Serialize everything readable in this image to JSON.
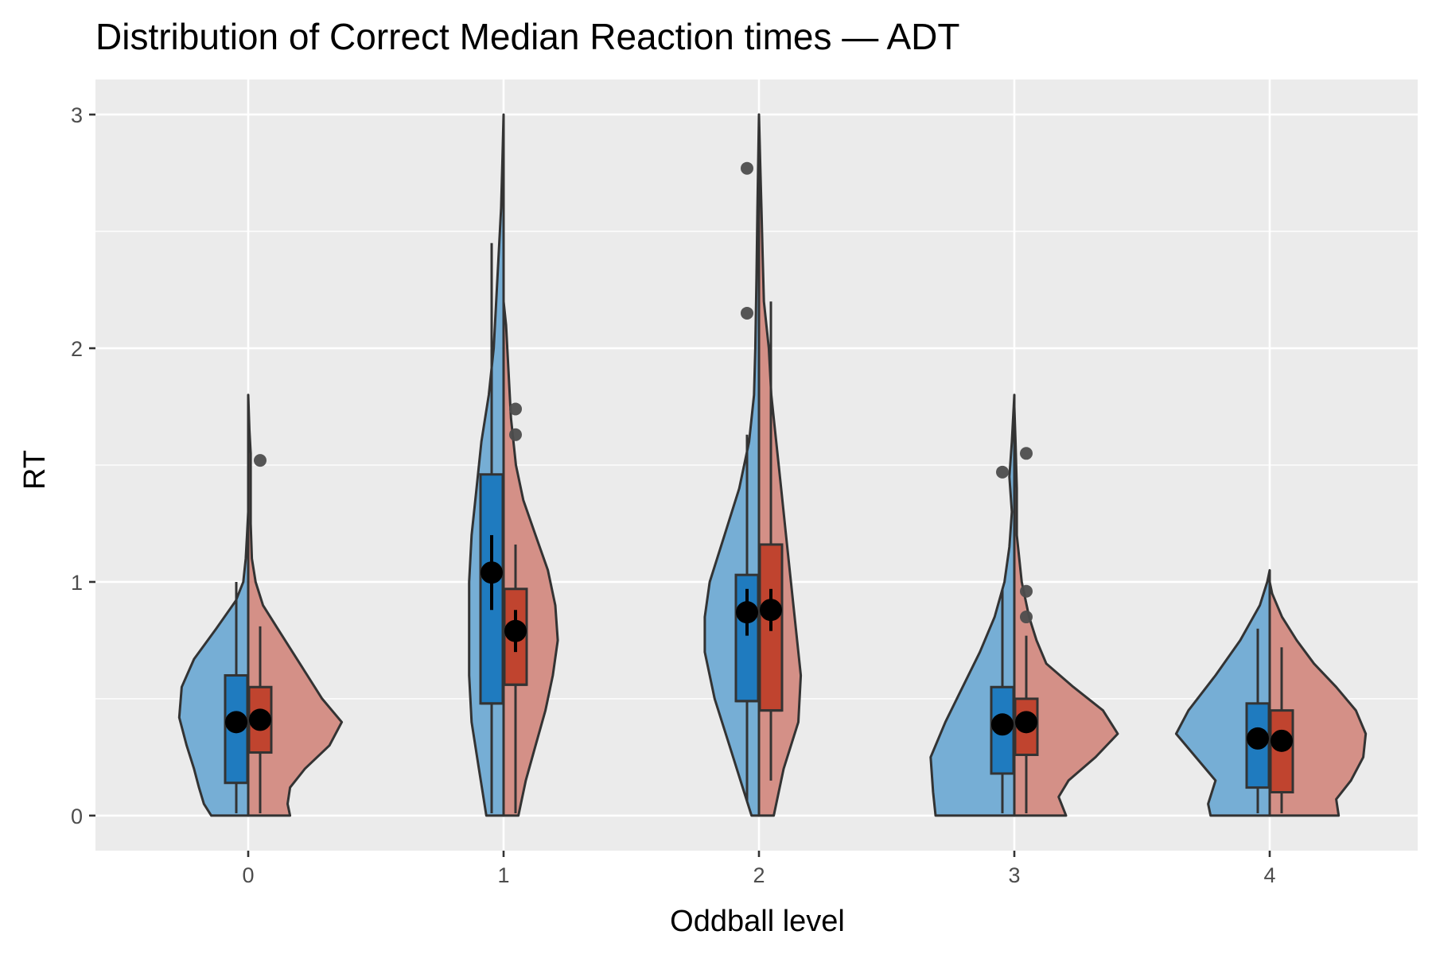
{
  "chart_data": {
    "type": "violin",
    "title": "Distribution of Correct Median Reaction times — ADT",
    "xlabel": "Oddball level",
    "ylabel": "RT",
    "categories": [
      "0",
      "1",
      "2",
      "3",
      "4"
    ],
    "yticks": [
      0,
      1,
      2,
      3
    ],
    "ylim": [
      -0.15,
      3.15
    ],
    "grid": true,
    "legend": "none",
    "colors": {
      "panel": "#ebebeb",
      "grid": "#ffffff",
      "left_violin": "#76aed5",
      "right_violin": "#d49087",
      "left_box": "#1f7bbf",
      "right_box": "#c0442f",
      "outline": "#333333",
      "mean": "#000000",
      "outlier": "#4d4d4d"
    },
    "series": [
      {
        "side": "left",
        "groups": [
          {
            "category": "0",
            "box": {
              "lower_whisker": 0.01,
              "q1": 0.14,
              "median": 0.4,
              "q3": 0.6,
              "upper_whisker": 1.0
            },
            "mean": 0.4,
            "mean_ci": [
              0.37,
              0.43
            ],
            "outliers": [],
            "density": [
              [
                0,
                0.15
              ],
              [
                0.05,
                0.18
              ],
              [
                0.12,
                0.2
              ],
              [
                0.2,
                0.22
              ],
              [
                0.3,
                0.25
              ],
              [
                0.42,
                0.28
              ],
              [
                0.55,
                0.27
              ],
              [
                0.67,
                0.22
              ],
              [
                0.8,
                0.13
              ],
              [
                0.92,
                0.05
              ],
              [
                1.0,
                0.02
              ],
              [
                1.1,
                0.01
              ],
              [
                1.2,
                0.005
              ],
              [
                1.3,
                0.0
              ]
            ]
          },
          {
            "category": "1",
            "box": {
              "lower_whisker": 0.01,
              "q1": 0.48,
              "median": 0.48,
              "q3": 1.46,
              "upper_whisker": 2.45
            },
            "mean": 1.04,
            "mean_ci": [
              0.88,
              1.2
            ],
            "outliers": [],
            "density": [
              [
                0,
                0.07
              ],
              [
                0.2,
                0.1
              ],
              [
                0.4,
                0.13
              ],
              [
                0.6,
                0.14
              ],
              [
                0.8,
                0.14
              ],
              [
                1.0,
                0.14
              ],
              [
                1.2,
                0.13
              ],
              [
                1.4,
                0.11
              ],
              [
                1.6,
                0.09
              ],
              [
                1.8,
                0.06
              ],
              [
                2.0,
                0.04
              ],
              [
                2.2,
                0.03
              ],
              [
                2.4,
                0.02
              ],
              [
                2.6,
                0.01
              ],
              [
                2.8,
                0.005
              ],
              [
                3.0,
                0.0
              ]
            ]
          },
          {
            "category": "2",
            "box": {
              "lower_whisker": 0.06,
              "q1": 0.49,
              "median": 0.49,
              "q3": 1.03,
              "upper_whisker": 1.63
            },
            "mean": 0.87,
            "mean_ci": [
              0.77,
              0.97
            ],
            "outliers": [
              2.15,
              2.77
            ],
            "density": [
              [
                0,
                0.03
              ],
              [
                0.1,
                0.06
              ],
              [
                0.3,
                0.12
              ],
              [
                0.5,
                0.18
              ],
              [
                0.7,
                0.22
              ],
              [
                0.85,
                0.22
              ],
              [
                1.0,
                0.2
              ],
              [
                1.2,
                0.14
              ],
              [
                1.4,
                0.08
              ],
              [
                1.6,
                0.04
              ],
              [
                1.8,
                0.02
              ],
              [
                2.0,
                0.015
              ],
              [
                2.3,
                0.01
              ],
              [
                2.6,
                0.006
              ],
              [
                3.0,
                0.0
              ]
            ]
          },
          {
            "category": "3",
            "box": {
              "lower_whisker": 0.01,
              "q1": 0.18,
              "median": 0.39,
              "q3": 0.55,
              "upper_whisker": 0.97
            },
            "mean": 0.39,
            "mean_ci": [
              0.36,
              0.42
            ],
            "outliers": [
              1.47
            ],
            "density": [
              [
                0,
                0.32
              ],
              [
                0.1,
                0.33
              ],
              [
                0.25,
                0.34
              ],
              [
                0.4,
                0.28
              ],
              [
                0.55,
                0.21
              ],
              [
                0.7,
                0.14
              ],
              [
                0.85,
                0.08
              ],
              [
                1.0,
                0.04
              ],
              [
                1.15,
                0.02
              ],
              [
                1.3,
                0.01
              ],
              [
                1.45,
                0.02
              ],
              [
                1.6,
                0.01
              ],
              [
                1.8,
                0.0
              ]
            ]
          },
          {
            "category": "4",
            "box": {
              "lower_whisker": 0.01,
              "q1": 0.12,
              "median": 0.33,
              "q3": 0.48,
              "upper_whisker": 0.8
            },
            "mean": 0.33,
            "mean_ci": [
              0.3,
              0.36
            ],
            "outliers": [],
            "density": [
              [
                0,
                0.24
              ],
              [
                0.05,
                0.25
              ],
              [
                0.15,
                0.22
              ],
              [
                0.25,
                0.3
              ],
              [
                0.35,
                0.38
              ],
              [
                0.45,
                0.33
              ],
              [
                0.6,
                0.22
              ],
              [
                0.75,
                0.12
              ],
              [
                0.9,
                0.04
              ],
              [
                1.0,
                0.01
              ],
              [
                1.05,
                0.0
              ]
            ]
          }
        ]
      },
      {
        "side": "right",
        "groups": [
          {
            "category": "0",
            "box": {
              "lower_whisker": 0.01,
              "q1": 0.27,
              "median": 0.41,
              "q3": 0.55,
              "upper_whisker": 0.81
            },
            "mean": 0.41,
            "mean_ci": [
              0.38,
              0.44
            ],
            "outliers": [
              1.52
            ],
            "density": [
              [
                0,
                0.17
              ],
              [
                0.05,
                0.16
              ],
              [
                0.12,
                0.17
              ],
              [
                0.2,
                0.23
              ],
              [
                0.3,
                0.33
              ],
              [
                0.4,
                0.38
              ],
              [
                0.5,
                0.3
              ],
              [
                0.6,
                0.24
              ],
              [
                0.7,
                0.18
              ],
              [
                0.8,
                0.12
              ],
              [
                0.9,
                0.06
              ],
              [
                1.0,
                0.03
              ],
              [
                1.1,
                0.015
              ],
              [
                1.25,
                0.01
              ],
              [
                1.4,
                0.01
              ],
              [
                1.55,
                0.01
              ],
              [
                1.65,
                0.005
              ],
              [
                1.8,
                0.0
              ]
            ]
          },
          {
            "category": "1",
            "box": {
              "lower_whisker": 0.01,
              "q1": 0.56,
              "median": 0.56,
              "q3": 0.97,
              "upper_whisker": 1.16
            },
            "mean": 0.79,
            "mean_ci": [
              0.7,
              0.88
            ],
            "outliers": [
              1.63,
              1.74
            ],
            "density": [
              [
                0,
                0.06
              ],
              [
                0.15,
                0.09
              ],
              [
                0.3,
                0.13
              ],
              [
                0.45,
                0.17
              ],
              [
                0.6,
                0.2
              ],
              [
                0.75,
                0.22
              ],
              [
                0.9,
                0.21
              ],
              [
                1.05,
                0.18
              ],
              [
                1.2,
                0.13
              ],
              [
                1.35,
                0.08
              ],
              [
                1.5,
                0.05
              ],
              [
                1.7,
                0.03
              ],
              [
                1.9,
                0.02
              ],
              [
                2.1,
                0.01
              ],
              [
                2.2,
                0.0
              ]
            ]
          },
          {
            "category": "2",
            "box": {
              "lower_whisker": 0.15,
              "q1": 0.45,
              "median": 0.45,
              "q3": 1.16,
              "upper_whisker": 2.2
            },
            "mean": 0.88,
            "mean_ci": [
              0.79,
              0.97
            ],
            "outliers": [],
            "density": [
              [
                0,
                0.06
              ],
              [
                0.2,
                0.1
              ],
              [
                0.4,
                0.16
              ],
              [
                0.6,
                0.17
              ],
              [
                0.8,
                0.15
              ],
              [
                1.0,
                0.13
              ],
              [
                1.2,
                0.11
              ],
              [
                1.4,
                0.09
              ],
              [
                1.6,
                0.07
              ],
              [
                1.8,
                0.05
              ],
              [
                2.0,
                0.04
              ],
              [
                2.2,
                0.02
              ],
              [
                2.4,
                0.015
              ],
              [
                2.6,
                0.01
              ],
              [
                2.8,
                0.005
              ],
              [
                3.0,
                0.0
              ]
            ]
          },
          {
            "category": "3",
            "box": {
              "lower_whisker": 0.01,
              "q1": 0.26,
              "median": 0.4,
              "q3": 0.5,
              "upper_whisker": 0.77
            },
            "mean": 0.4,
            "mean_ci": [
              0.37,
              0.43
            ],
            "outliers": [
              0.85,
              0.96,
              1.55
            ],
            "density": [
              [
                0,
                0.21
              ],
              [
                0.08,
                0.18
              ],
              [
                0.15,
                0.22
              ],
              [
                0.25,
                0.33
              ],
              [
                0.35,
                0.42
              ],
              [
                0.45,
                0.36
              ],
              [
                0.55,
                0.24
              ],
              [
                0.65,
                0.13
              ],
              [
                0.75,
                0.09
              ],
              [
                0.85,
                0.06
              ],
              [
                1.0,
                0.03
              ],
              [
                1.2,
                0.01
              ],
              [
                1.4,
                0.01
              ],
              [
                1.6,
                0.005
              ],
              [
                1.75,
                0.0
              ]
            ]
          },
          {
            "category": "4",
            "box": {
              "lower_whisker": 0.01,
              "q1": 0.1,
              "median": 0.32,
              "q3": 0.45,
              "upper_whisker": 0.72
            },
            "mean": 0.32,
            "mean_ci": [
              0.29,
              0.35
            ],
            "outliers": [],
            "density": [
              [
                0,
                0.28
              ],
              [
                0.07,
                0.27
              ],
              [
                0.15,
                0.33
              ],
              [
                0.25,
                0.38
              ],
              [
                0.35,
                0.39
              ],
              [
                0.45,
                0.35
              ],
              [
                0.55,
                0.27
              ],
              [
                0.65,
                0.18
              ],
              [
                0.75,
                0.11
              ],
              [
                0.85,
                0.05
              ],
              [
                0.95,
                0.01
              ],
              [
                1.0,
                0.0
              ]
            ]
          }
        ]
      }
    ]
  }
}
